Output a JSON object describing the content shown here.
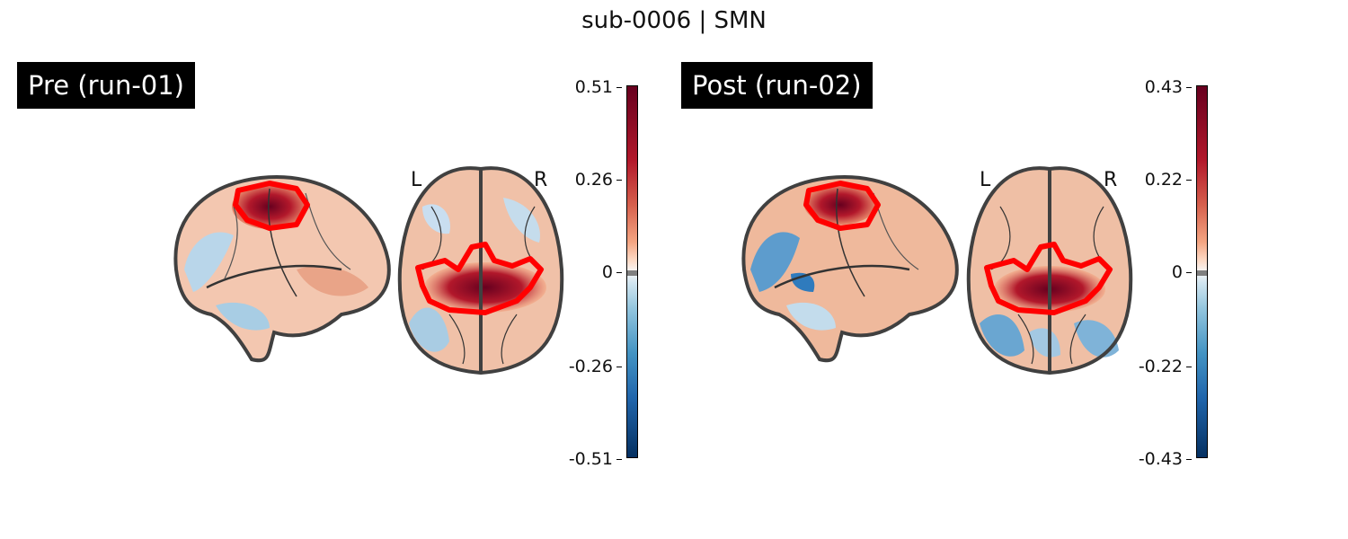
{
  "figure": {
    "title": "sub-0006 | SMN"
  },
  "panels": [
    {
      "label": "Pre (run-01)",
      "colorbar": {
        "max": "0.51",
        "upper": "0.26",
        "zero": "0",
        "lower": "-0.26",
        "min": "-0.51"
      },
      "orientation": {
        "left": "L",
        "right": "R"
      }
    },
    {
      "label": "Post (run-02)",
      "colorbar": {
        "max": "0.43",
        "upper": "0.22",
        "zero": "0",
        "lower": "-0.22",
        "min": "-0.43"
      },
      "orientation": {
        "left": "L",
        "right": "R"
      }
    }
  ],
  "colors": {
    "positive_max": "#67001f",
    "positive_mid": "#e8896b",
    "neutral": "#f7f7f7",
    "negative_mid": "#6ba7d0",
    "negative_max": "#053061",
    "roi_outline": "#ff0000",
    "brain_outline": "#404040"
  }
}
